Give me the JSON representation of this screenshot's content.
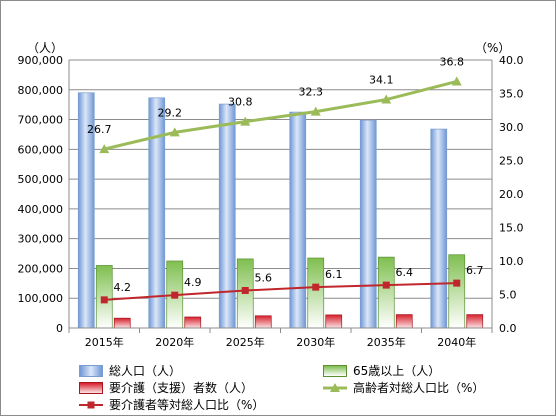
{
  "chart_data": {
    "type": "bar",
    "categories": [
      "2015年",
      "2020年",
      "2025年",
      "2030年",
      "2035年",
      "2040年"
    ],
    "y_left": {
      "unit": "（人）",
      "ylim": [
        0,
        900000
      ],
      "ticks": [
        "0",
        "100,000",
        "200,000",
        "300,000",
        "400,000",
        "500,000",
        "600,000",
        "700,000",
        "800,000",
        "900,000"
      ]
    },
    "y_right": {
      "unit": "（%）",
      "ylim": [
        0,
        40
      ],
      "ticks": [
        "0.0",
        "5.0",
        "10.0",
        "15.0",
        "20.0",
        "25.0",
        "30.0",
        "35.0",
        "40.0"
      ]
    },
    "grid": true,
    "legend_position": "bottom",
    "series": [
      {
        "name": "総人口（人）",
        "kind": "bar",
        "axis": "left",
        "color": "#9bbbe8",
        "values": [
          790000,
          773000,
          752000,
          725000,
          698000,
          668000
        ]
      },
      {
        "name": "65歳以上（人）",
        "kind": "bar",
        "axis": "left",
        "color": "#8fcf6a",
        "values": [
          210000,
          225000,
          232000,
          235000,
          238000,
          246000
        ]
      },
      {
        "name": "要介護（支援）者数（人）",
        "kind": "bar",
        "axis": "left",
        "color": "#e0404a",
        "values": [
          33000,
          37000,
          41000,
          44000,
          45000,
          45000
        ]
      },
      {
        "name": "高齢者対総人口比（%）",
        "kind": "line",
        "axis": "right",
        "color": "#9bbb59",
        "values": [
          26.7,
          29.2,
          30.8,
          32.3,
          34.1,
          36.8
        ],
        "labels": [
          "26.7",
          "29.2",
          "30.8",
          "32.3",
          "34.1",
          "36.8"
        ]
      },
      {
        "name": "要介護者等対総人口比（%）",
        "kind": "line",
        "axis": "right",
        "color": "#c0272d",
        "values": [
          4.2,
          4.9,
          5.6,
          6.1,
          6.4,
          6.7
        ],
        "labels": [
          "4.2",
          "4.9",
          "5.6",
          "6.1",
          "6.4",
          "6.7"
        ]
      }
    ]
  }
}
